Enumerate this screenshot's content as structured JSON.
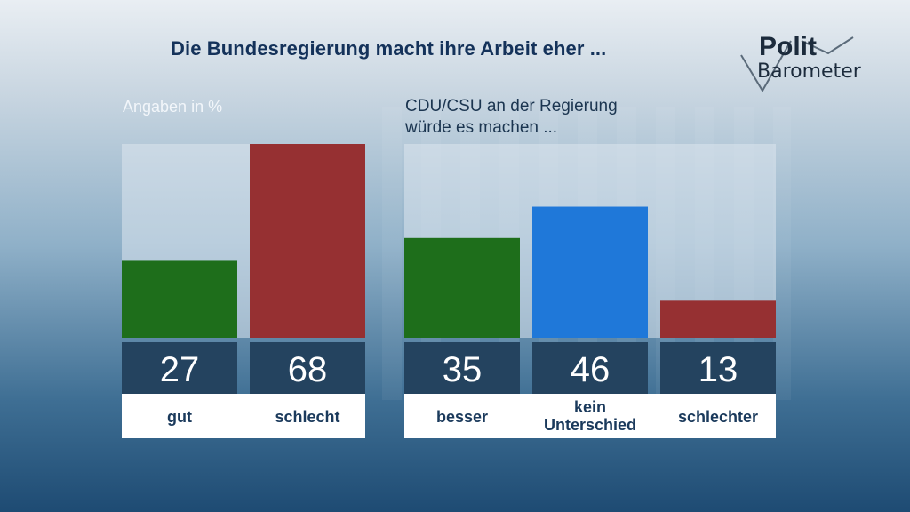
{
  "title": "Die Bundesregierung macht ihre Arbeit eher ...",
  "logo": {
    "line1": "Polit",
    "line2": "Barometer"
  },
  "subtitle_left": "Angaben in %",
  "subtitle_right_line1": "CDU/CSU an der Regierung",
  "subtitle_right_line2": "würde es machen ...",
  "colors": {
    "green": "#1e6e1b",
    "red": "#963032",
    "blue": "#1f78d9",
    "value_box": "#24435f",
    "track": "#dce6ee"
  },
  "chart_data": [
    {
      "type": "bar",
      "title": "Die Bundesregierung macht ihre Arbeit eher ...",
      "subtitle": "Angaben in %",
      "categories": [
        "gut",
        "schlecht"
      ],
      "values": [
        27,
        68
      ],
      "colors": [
        "#1e6e1b",
        "#963032"
      ],
      "ylim": [
        0,
        68
      ]
    },
    {
      "type": "bar",
      "subtitle": "CDU/CSU an der Regierung würde es machen ...",
      "categories": [
        "besser",
        "kein Unterschied",
        "schlechter"
      ],
      "values": [
        35,
        46,
        13
      ],
      "colors": [
        "#1e6e1b",
        "#1f78d9",
        "#963032"
      ],
      "ylim": [
        0,
        68
      ]
    }
  ]
}
